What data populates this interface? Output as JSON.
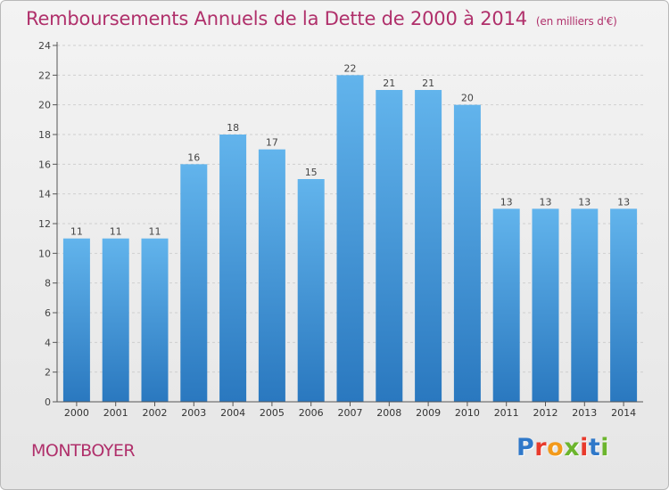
{
  "title": "Remboursements Annuels de la Dette de 2000 à 2014",
  "subtitle": "(en milliers d'€)",
  "place": "MONTBOYER",
  "logo": {
    "text": "Proxiti",
    "letters": [
      "P",
      "r",
      "o",
      "x",
      "i",
      "t",
      "i"
    ]
  },
  "colors": {
    "title": "#b0306b",
    "bar_top": "#62b4ec",
    "bar_bottom": "#2a78bf"
  },
  "chart_data": {
    "type": "bar",
    "categories": [
      "2000",
      "2001",
      "2002",
      "2003",
      "2004",
      "2005",
      "2006",
      "2007",
      "2008",
      "2009",
      "2010",
      "2011",
      "2012",
      "2013",
      "2014"
    ],
    "values": [
      11,
      11,
      11,
      16,
      18,
      17,
      15,
      22,
      21,
      21,
      20,
      13,
      13,
      13,
      13
    ],
    "ylim": [
      0,
      24
    ],
    "yticks": [
      0,
      2,
      4,
      6,
      8,
      10,
      12,
      14,
      16,
      18,
      20,
      22,
      24
    ],
    "grid": true,
    "xlabel": "",
    "ylabel": ""
  }
}
